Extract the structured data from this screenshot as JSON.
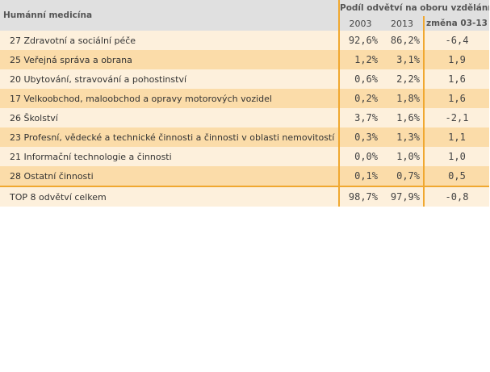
{
  "table": {
    "title": "Humánní medicína",
    "group_header": "Podíl odvětví na oboru vzdělání",
    "col_2003": "2003",
    "col_2013": "2013",
    "col_change": "změna 03-13",
    "rows": [
      {
        "label": "27 Zdravotní a sociální péče",
        "v2003": "92,6%",
        "v2013": "86,2%",
        "change": "-6,4"
      },
      {
        "label": "25 Veřejná správa a obrana",
        "v2003": "1,2%",
        "v2013": "3,1%",
        "change": "1,9"
      },
      {
        "label": "20 Ubytování, stravování a pohostinství",
        "v2003": "0,6%",
        "v2013": "2,2%",
        "change": "1,6"
      },
      {
        "label": "17 Velkoobchod, maloobchod a opravy motorových vozidel",
        "v2003": "0,2%",
        "v2013": "1,8%",
        "change": "1,6"
      },
      {
        "label": "26 Školství",
        "v2003": "3,7%",
        "v2013": "1,6%",
        "change": "-2,1"
      },
      {
        "label": "23 Profesní, vědecké a technické činnosti a činnosti v oblasti nemovitostí",
        "v2003": "0,3%",
        "v2013": "1,3%",
        "change": "1,1"
      },
      {
        "label": "21 Informační technologie a činnosti",
        "v2003": "0,0%",
        "v2013": "1,0%",
        "change": "1,0"
      },
      {
        "label": "28 Ostatní činnosti",
        "v2003": "0,1%",
        "v2013": "0,7%",
        "change": "0,5"
      }
    ],
    "total": {
      "label": "TOP 8 odvětví celkem",
      "v2003": "98,7%",
      "v2013": "97,9%",
      "change": "-0,8"
    }
  },
  "colors": {
    "header_bg": "#e0e0e0",
    "row_light": "#fdf0dc",
    "row_dark": "#fbdca9",
    "accent_line": "#f0a830"
  }
}
